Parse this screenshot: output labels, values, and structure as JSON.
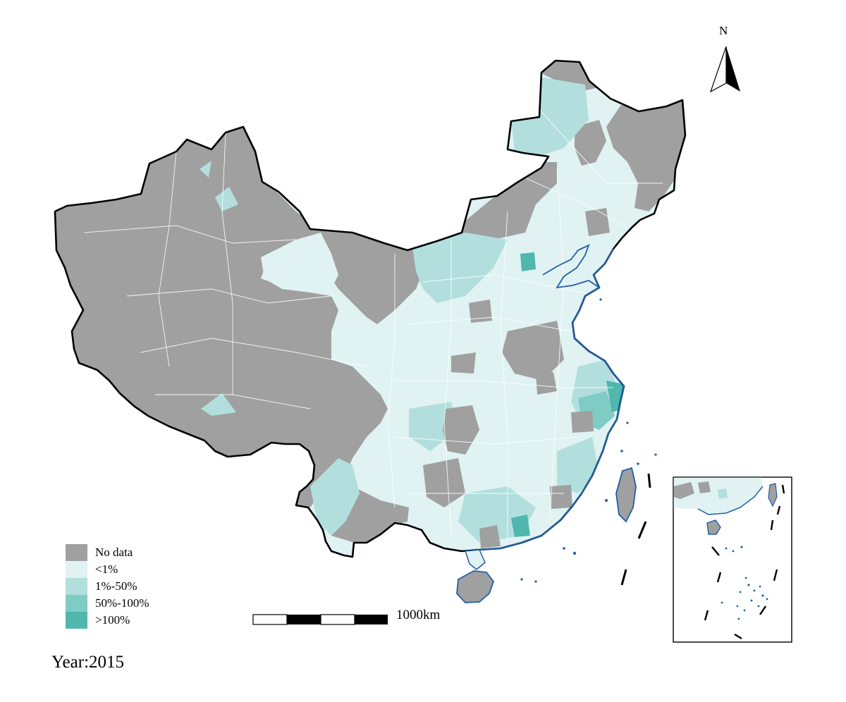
{
  "legend": {
    "items": [
      {
        "label": "No data",
        "color": "#a0a0a0"
      },
      {
        "label": "<1%",
        "color": "#e0f2f2"
      },
      {
        "label": "1%-50%",
        "color": "#b2dfdd"
      },
      {
        "label": "50%-100%",
        "color": "#7fccc5"
      },
      {
        "label": ">100%",
        "color": "#4fb7ad"
      }
    ]
  },
  "scale_bar": {
    "label": "1000km"
  },
  "north_arrow": {
    "label": "N",
    "icon": "north-arrow-icon"
  },
  "year_label": "Year:2015",
  "colors": {
    "border": "#000000",
    "internal_boundary": "#ffffff",
    "coastline": "#1f5fa8"
  }
}
